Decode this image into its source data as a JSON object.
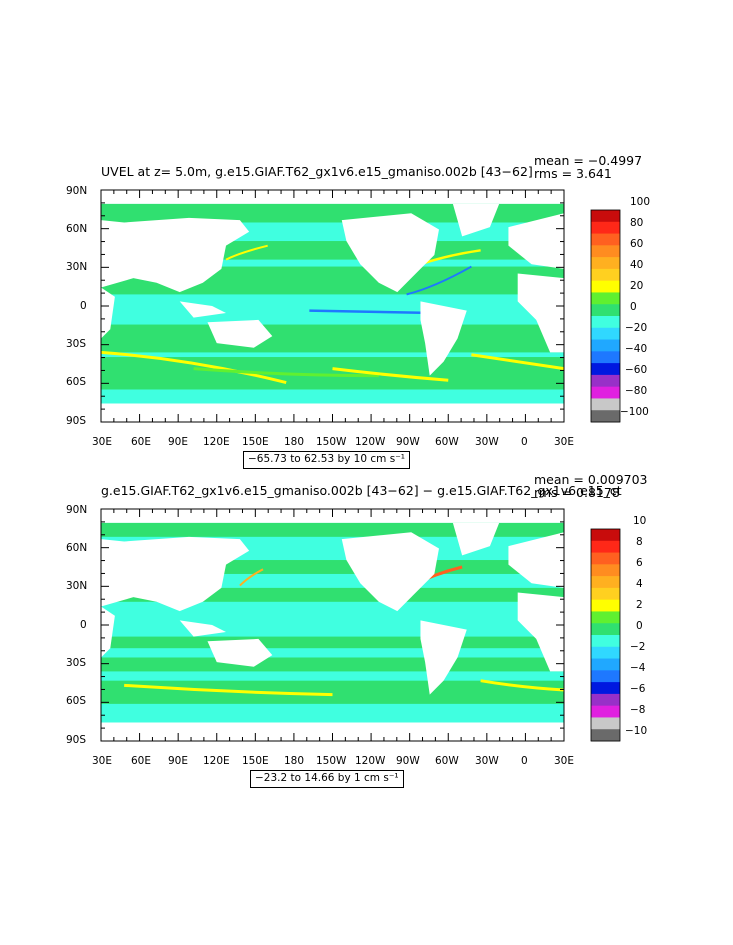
{
  "colors": {
    "land": "#ffffff",
    "levels": [
      "#6a6a6a",
      "#c8c8c8",
      "#e020e0",
      "#9830c8",
      "#0018e0",
      "#1e78ff",
      "#20a8ff",
      "#30d8ff",
      "#40ffe0",
      "#30e070",
      "#60f030",
      "#ffff00",
      "#ffd020",
      "#ffb020",
      "#ff8c20",
      "#ff6020",
      "#ff2818",
      "#c80c0c"
    ]
  },
  "panels": [
    {
      "title": "UVEL at z=    5.0m, g.e15.GIAF.T62_gx1v6.e15_gmaniso.002b ‌[43−62‌]",
      "mean": "mean = −0.4997",
      "rms": "rms = 3.641",
      "range": "−65.73 to 62.53 by 10 cm s⁻¹",
      "lat_labels": [
        "90N",
        "60N",
        "30N",
        "0",
        "30S",
        "60S",
        "90S"
      ],
      "lon_labels": [
        "30E",
        "60E",
        "90E",
        "120E",
        "150E",
        "180",
        "150W",
        "120W",
        "90W",
        "60W",
        "30W",
        "0",
        "30E"
      ],
      "colorbar_labels": [
        "100",
        "80",
        "60",
        "40",
        "20",
        "0",
        "−20",
        "−40",
        "−60",
        "−80",
        "−100"
      ]
    },
    {
      "title": "g.e15.GIAF.T62_gx1v6.e15_gmaniso.002b [43−62] − g.e15.GIAF.T62_gx1v6.e15_ct",
      "mean": "mean = 0.009703",
      "rms": "rms = 0.8178",
      "range": "−23.2 to 14.66 by 1 cm s⁻¹",
      "lat_labels": [
        "90N",
        "60N",
        "30N",
        "0",
        "30S",
        "60S",
        "90S"
      ],
      "lon_labels": [
        "30E",
        "60E",
        "90E",
        "120E",
        "150E",
        "180",
        "150W",
        "120W",
        "90W",
        "60W",
        "30W",
        "0",
        "30E"
      ],
      "colorbar_labels": [
        "10",
        "8",
        "6",
        "4",
        "2",
        "0",
        "−2",
        "−4",
        "−6",
        "−8",
        "−10"
      ]
    }
  ]
}
